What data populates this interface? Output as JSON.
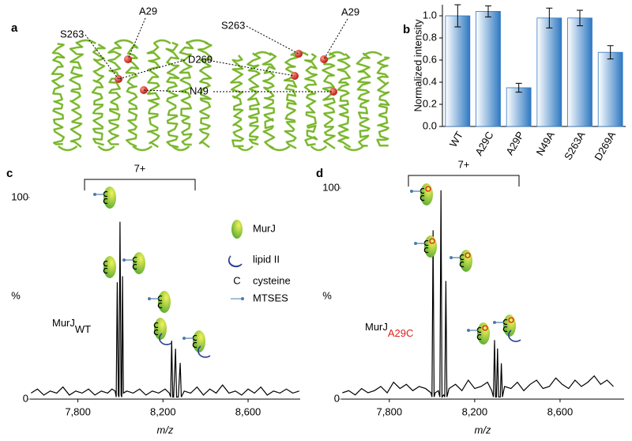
{
  "structure_panel": {
    "panel_label": "a",
    "residue_labels": [
      "A29",
      "S263",
      "D269",
      "N49",
      "S263",
      "A29"
    ]
  },
  "chart_data": [
    {
      "type": "bar",
      "panel_label": "b",
      "y_label": "Normalized intensity",
      "categories": [
        "WT",
        "A29C",
        "A29P",
        "N49A",
        "S263A",
        "D269A"
      ],
      "values": [
        1.0,
        1.04,
        0.35,
        0.98,
        0.98,
        0.67
      ],
      "errors": [
        0.1,
        0.05,
        0.04,
        0.09,
        0.07,
        0.06
      ],
      "color": "#2e78c2",
      "ylim": [
        0,
        1.1
      ],
      "yticks": [
        {
          "value": 0,
          "label": "0.0"
        },
        0.2,
        0.4,
        0.6,
        0.8,
        {
          "value": 1,
          "label": "1.0"
        }
      ]
    },
    {
      "type": "line",
      "panel_label": "c",
      "x_label": "m/z",
      "y_label": "%",
      "annotation": "7+",
      "sample_label": "MurJ",
      "sample_subscript": "WT",
      "subscript_color": "#000000",
      "legend": [
        "MurJ",
        "lipid II",
        "cysteine",
        "MTSES"
      ],
      "cysteine_symbol": "C",
      "color": "#000000",
      "x": [
        7580,
        7610,
        7640,
        7670,
        7700,
        7730,
        7760,
        7790,
        7820,
        7850,
        7880,
        7910,
        7940,
        7960,
        7975,
        7980,
        7985,
        7990,
        7993,
        7998,
        8003,
        8006,
        8010,
        8014,
        8030,
        8060,
        8090,
        8120,
        8150,
        8180,
        8210,
        8230,
        8236,
        8241,
        8246,
        8250,
        8259,
        8264,
        8272,
        8281,
        8286,
        8300,
        8330,
        8360,
        8390,
        8420,
        8450,
        8480,
        8510,
        8540,
        8570,
        8600,
        8630,
        8660,
        8690,
        8720,
        8750,
        8780,
        8810,
        8840
      ],
      "values": [
        3,
        5,
        2,
        4,
        3,
        6,
        2,
        4,
        3,
        5,
        2,
        4,
        3,
        5,
        4,
        1,
        58,
        2,
        1,
        88,
        2,
        1,
        61,
        3,
        4,
        3,
        5,
        2,
        4,
        3,
        5,
        3,
        1,
        29,
        1,
        1,
        25,
        1,
        1,
        18,
        1,
        4,
        3,
        6,
        2,
        5,
        3,
        7,
        3,
        4,
        2,
        5,
        3,
        6,
        2,
        4,
        3,
        5,
        3,
        4
      ],
      "xlim": [
        7575,
        8845
      ],
      "ylim": [
        0,
        100
      ],
      "xticks": [
        {
          "value": 7800,
          "label": "7,800"
        },
        {
          "value": 8200,
          "label": "8,200"
        },
        {
          "value": 8600,
          "label": "8,600"
        }
      ],
      "yticks": [
        0,
        100
      ]
    },
    {
      "type": "line",
      "panel_label": "d",
      "x_label": "m/z",
      "y_label": "%",
      "annotation": "7+",
      "sample_label": "MurJ",
      "sample_subscript": "A29C",
      "subscript_color": "#e0201b",
      "color": "#000000",
      "x": [
        7580,
        7610,
        7640,
        7670,
        7700,
        7730,
        7760,
        7790,
        7820,
        7850,
        7880,
        7910,
        7940,
        7970,
        7995,
        8000,
        8005,
        8010,
        8015,
        8030,
        8037,
        8042,
        8047,
        8055,
        8060,
        8065,
        8070,
        8080,
        8110,
        8140,
        8170,
        8200,
        8230,
        8260,
        8280,
        8288,
        8293,
        8298,
        8302,
        8307,
        8312,
        8320,
        8325,
        8330,
        8340,
        8370,
        8400,
        8430,
        8460,
        8490,
        8520,
        8550,
        8580,
        8610,
        8640,
        8670,
        8700,
        8730,
        8760,
        8790,
        8820,
        8850
      ],
      "values": [
        3,
        4,
        2,
        5,
        3,
        4,
        6,
        3,
        8,
        5,
        7,
        4,
        6,
        5,
        3,
        1,
        80,
        1,
        3,
        4,
        1,
        99,
        1,
        2,
        1,
        56,
        1,
        5,
        7,
        4,
        9,
        5,
        6,
        8,
        4,
        1,
        28,
        1,
        1,
        24,
        1,
        1,
        17,
        1,
        6,
        5,
        8,
        4,
        7,
        9,
        5,
        6,
        10,
        7,
        5,
        9,
        6,
        8,
        11,
        7,
        9,
        6
      ],
      "xlim": [
        7575,
        8900
      ],
      "ylim": [
        0,
        100
      ],
      "xticks": [
        {
          "value": 7800,
          "label": "7,800"
        },
        {
          "value": 8200,
          "label": "8,200"
        },
        {
          "value": 8600,
          "label": "8,600"
        }
      ],
      "yticks": [
        0,
        100
      ]
    }
  ]
}
